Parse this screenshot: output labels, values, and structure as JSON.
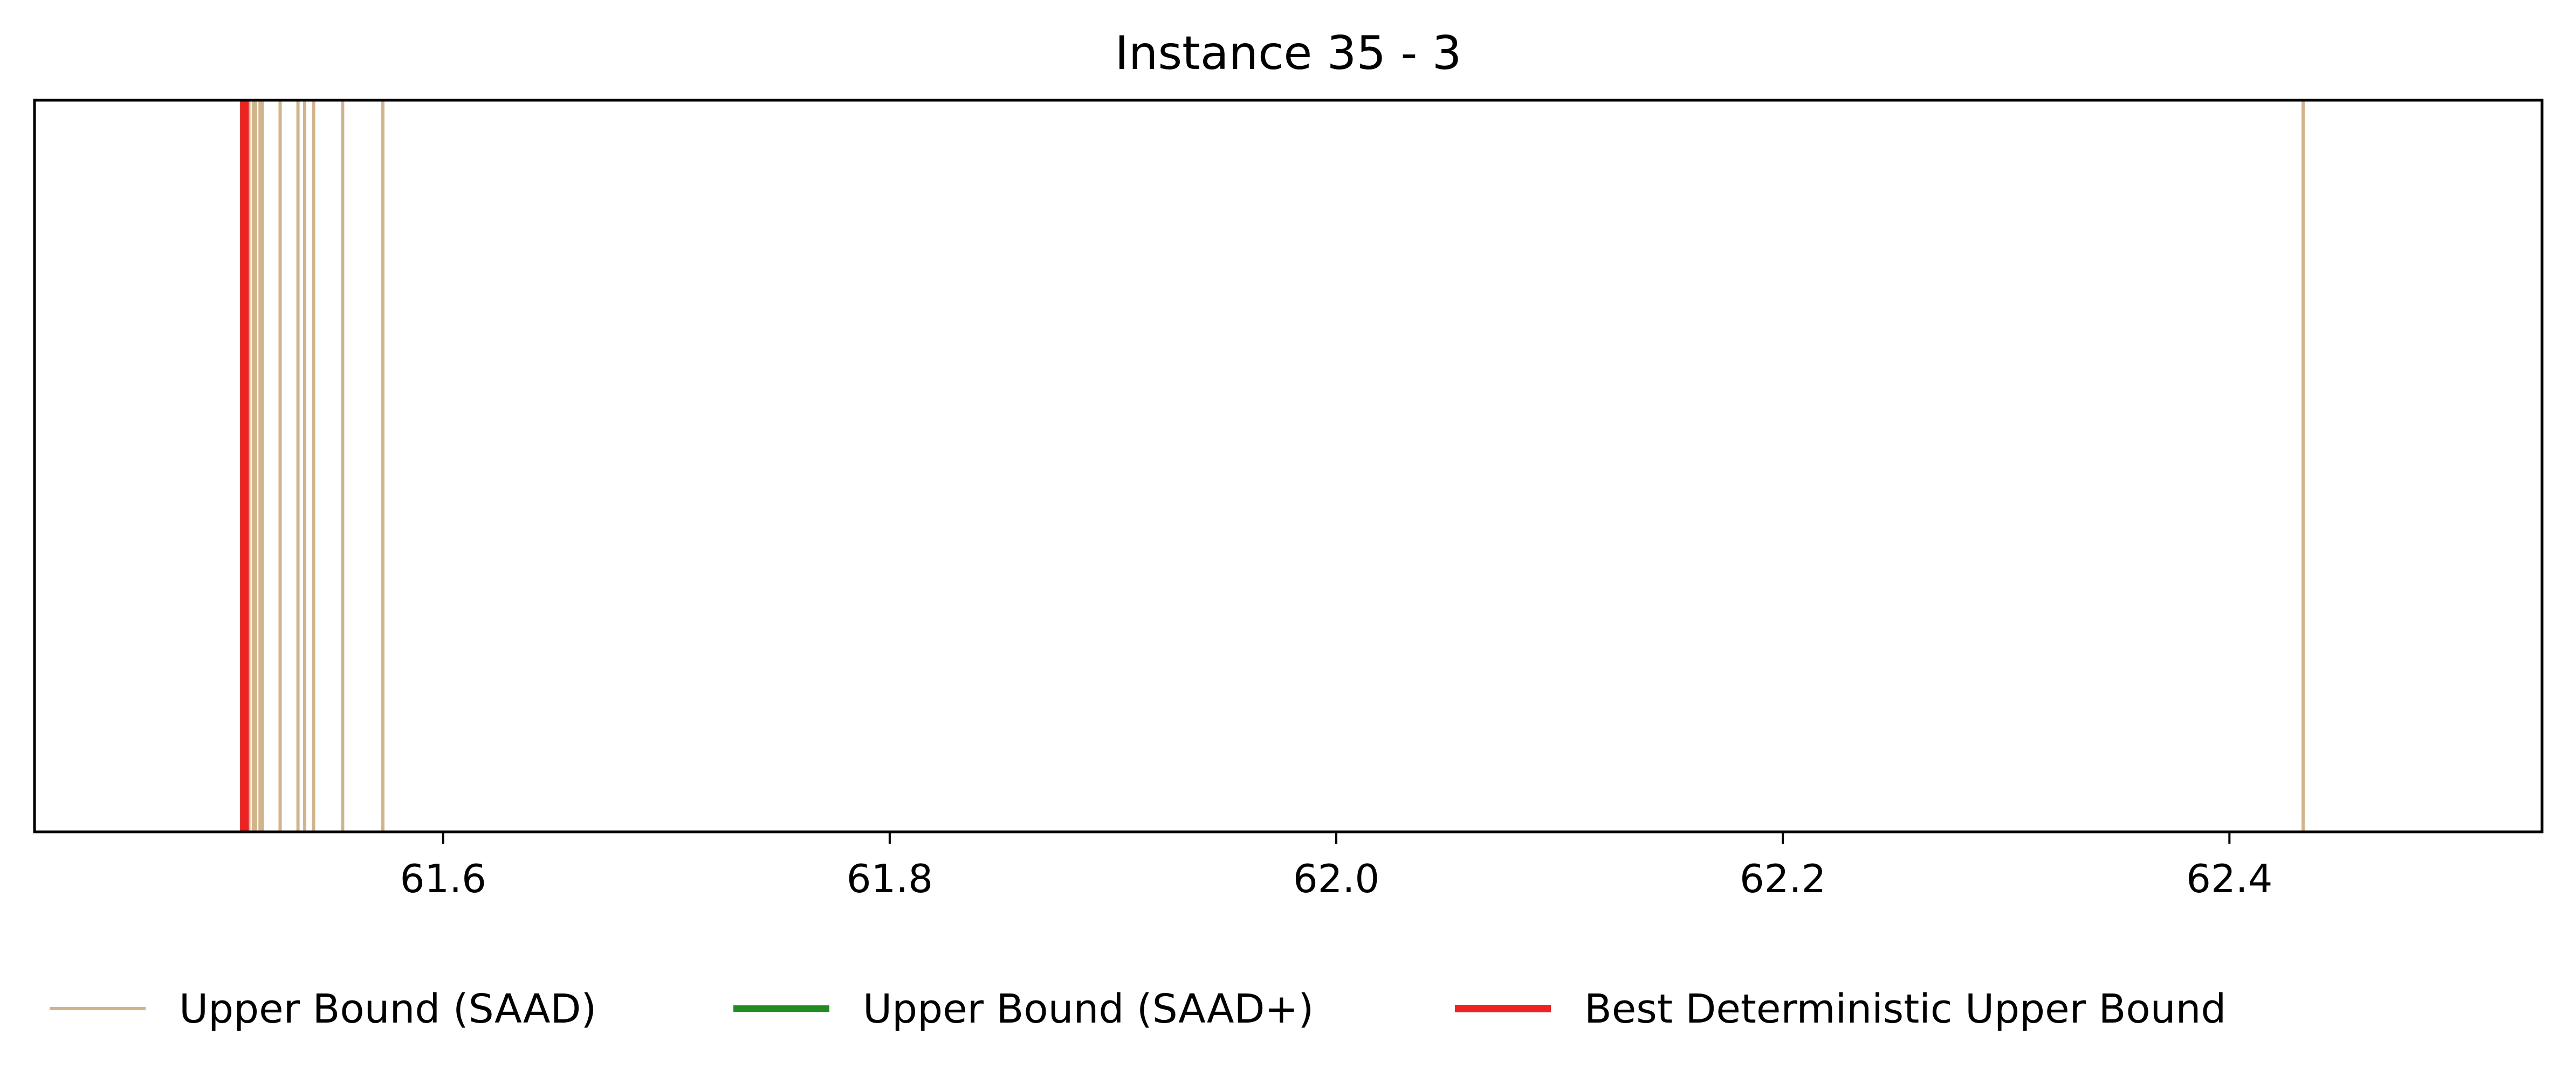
{
  "chart_data": {
    "type": "vertical-lines",
    "title": "Instance 35 - 3",
    "xlabel": "",
    "ylabel": "",
    "xlim": [
      61.417,
      62.54
    ],
    "xticks": [
      61.6,
      61.8,
      62.0,
      62.2,
      62.4
    ],
    "xtick_labels": [
      "61.6",
      "61.8",
      "62.0",
      "62.2",
      "62.4"
    ],
    "grid": false,
    "legend_position": "bottom",
    "series": [
      {
        "name": "Upper Bound (SAAD)",
        "color": "#d2b48c",
        "values": [
          61.511,
          61.512,
          61.513,
          61.515,
          61.516,
          61.518,
          61.519,
          61.527,
          61.535,
          61.538,
          61.542,
          61.555,
          61.573,
          62.433
        ]
      },
      {
        "name": "Upper Bound (SAAD+)",
        "color": "#228b22",
        "values": [
          61.511
        ]
      },
      {
        "name": "Best Deterministic Upper Bound",
        "color": "#ee2222",
        "values": [
          61.511
        ]
      }
    ]
  }
}
